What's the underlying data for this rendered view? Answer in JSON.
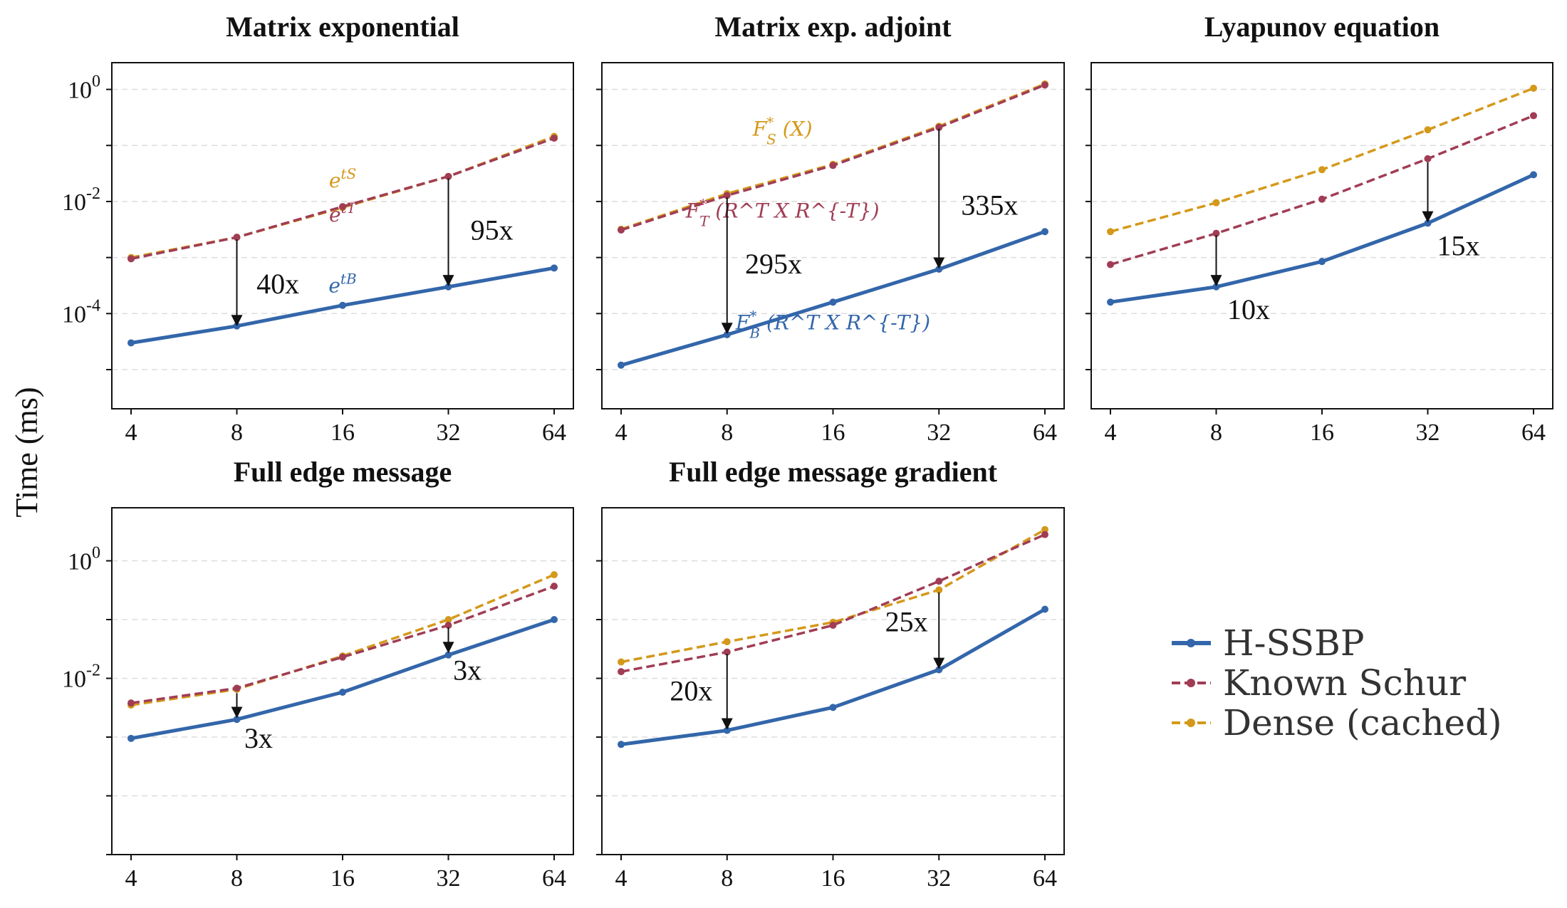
{
  "figure": {
    "ylabel": "Time (ms)",
    "legend": {
      "placement": "bottom-right",
      "entries": [
        {
          "name": "H-SSBP",
          "color": "#3366aa",
          "style": "solid"
        },
        {
          "name": "Known Schur",
          "color": "#a03d55",
          "style": "dashed"
        },
        {
          "name": "Dense (cached)",
          "color": "#d4991a",
          "style": "dashed"
        }
      ]
    }
  },
  "chart_data": [
    {
      "type": "line",
      "title": "Matrix exponential",
      "xscale": "log2",
      "yscale": "log10",
      "x": [
        4,
        8,
        16,
        32,
        64
      ],
      "xticks": [
        "4",
        "8",
        "16",
        "32",
        "64"
      ],
      "ylim": [
        2e-06,
        3
      ],
      "ytick_values": [
        0.0001,
        0.01,
        1
      ],
      "ytick_labels": [
        [
          "10",
          "-4"
        ],
        [
          "10",
          "-2"
        ],
        [
          "10",
          "0"
        ]
      ],
      "grid": "horizontal dashed",
      "series": [
        {
          "name": "H-SSBP",
          "values": [
            3e-05,
            6e-05,
            0.00014,
            0.0003,
            0.00065
          ]
        },
        {
          "name": "Known Schur",
          "values": [
            0.00095,
            0.0023,
            0.0081,
            0.028,
            0.135
          ]
        },
        {
          "name": "Dense (cached)",
          "values": [
            0.001,
            0.0023,
            0.0078,
            0.028,
            0.145
          ]
        }
      ],
      "series_labels": [
        {
          "text": "e",
          "sup": "tS",
          "color": "#d4991a",
          "x": 16,
          "y": 0.018
        },
        {
          "text": "e",
          "sup": "tT",
          "color": "#a03d55",
          "x": 16,
          "y": 0.0044
        },
        {
          "text": "e",
          "sup": "tB",
          "color": "#3366aa",
          "x": 16,
          "y": 0.00024
        }
      ],
      "annotations": [
        {
          "text": "40x",
          "x": 8,
          "from": 0.0021,
          "to": 6.2e-05,
          "label_x": 9.1,
          "label_y": 0.00023
        },
        {
          "text": "95x",
          "x": 32,
          "from": 0.026,
          "to": 0.00032,
          "label_x": 37,
          "label_y": 0.0021
        }
      ]
    },
    {
      "type": "line",
      "title": "Matrix exp. adjoint",
      "xscale": "log2",
      "yscale": "log10",
      "x": [
        4,
        8,
        16,
        32,
        64
      ],
      "xticks": [
        "4",
        "8",
        "16",
        "32",
        "64"
      ],
      "ylim": [
        2e-06,
        3
      ],
      "grid": "horizontal dashed",
      "series": [
        {
          "name": "H-SSBP",
          "values": [
            1.2e-05,
            4.2e-05,
            0.00016,
            0.00062,
            0.0029
          ]
        },
        {
          "name": "Known Schur",
          "values": [
            0.0031,
            0.0128,
            0.044,
            0.21,
            1.2
          ]
        },
        {
          "name": "Dense (cached)",
          "values": [
            0.0032,
            0.0138,
            0.046,
            0.22,
            1.25
          ]
        }
      ],
      "series_labels": [
        {
          "text": "F",
          "sub": "S",
          "sup": "*",
          "tail": "(X)",
          "color": "#d4991a",
          "x": 11.5,
          "y": 0.15
        },
        {
          "text": "F",
          "sub": "T",
          "sup": "*",
          "tail": "(R^T X R^{-T})",
          "color": "#a03d55",
          "x": 11.5,
          "y": 0.0052
        },
        {
          "text": "F",
          "sub": "B",
          "sup": "*",
          "tail": "(R^T X R^{-T})",
          "color": "#3366aa",
          "x": 16,
          "y": 5.2e-05
        }
      ],
      "annotations": [
        {
          "text": "295x",
          "x": 8,
          "from": 0.0118,
          "to": 4.5e-05,
          "label_x": 9,
          "label_y": 0.00052
        },
        {
          "text": "335x",
          "x": 32,
          "from": 0.2,
          "to": 0.00066,
          "label_x": 37,
          "label_y": 0.0058
        }
      ]
    },
    {
      "type": "line",
      "title": "Lyapunov equation",
      "xscale": "log2",
      "yscale": "log10",
      "x": [
        4,
        8,
        16,
        32,
        64
      ],
      "xticks": [
        "4",
        "8",
        "16",
        "32",
        "64"
      ],
      "ylim": [
        2e-06,
        3
      ],
      "grid": "horizontal dashed",
      "series": [
        {
          "name": "H-SSBP",
          "values": [
            0.00016,
            0.0003,
            0.00085,
            0.0041,
            0.03
          ]
        },
        {
          "name": "Known Schur",
          "values": [
            0.00075,
            0.0027,
            0.011,
            0.058,
            0.34
          ]
        },
        {
          "name": "Dense (cached)",
          "values": [
            0.0029,
            0.0095,
            0.037,
            0.19,
            1.05
          ]
        }
      ],
      "annotations": [
        {
          "text": "10x",
          "x": 8,
          "from": 0.0025,
          "to": 0.00032,
          "label_x": 8.6,
          "label_y": 8e-05
        },
        {
          "text": "15x",
          "x": 32,
          "from": 0.05,
          "to": 0.0044,
          "label_x": 34,
          "label_y": 0.0011
        }
      ]
    },
    {
      "type": "line",
      "title": "Full edge message",
      "xscale": "log2",
      "yscale": "log10",
      "x": [
        4,
        8,
        16,
        32,
        64
      ],
      "xticks": [
        "4",
        "8",
        "16",
        "32",
        "64"
      ],
      "ylim": [
        1e-05,
        8
      ],
      "ytick_values": [
        0.01,
        1
      ],
      "ytick_labels": [
        [
          "10",
          "-2"
        ],
        [
          "10",
          "0"
        ]
      ],
      "grid": "horizontal dashed",
      "series": [
        {
          "name": "H-SSBP",
          "values": [
            0.00095,
            0.002,
            0.0058,
            0.025,
            0.1
          ]
        },
        {
          "name": "Known Schur",
          "values": [
            0.0038,
            0.0068,
            0.023,
            0.08,
            0.37
          ]
        },
        {
          "name": "Dense (cached)",
          "values": [
            0.0035,
            0.0065,
            0.024,
            0.1,
            0.58
          ]
        }
      ],
      "annotations": [
        {
          "text": "3x",
          "x": 8,
          "from": 0.0056,
          "to": 0.0022,
          "label_x": 8.4,
          "label_y": 0.00066
        },
        {
          "text": "3x",
          "x": 32,
          "from": 0.074,
          "to": 0.028,
          "label_x": 33,
          "label_y": 0.0095
        }
      ]
    },
    {
      "type": "line",
      "title": "Full edge message gradient",
      "xscale": "log2",
      "yscale": "log10",
      "x": [
        4,
        8,
        16,
        32,
        64
      ],
      "xticks": [
        "4",
        "8",
        "16",
        "32",
        "64"
      ],
      "ylim": [
        1e-05,
        8
      ],
      "grid": "horizontal dashed",
      "series": [
        {
          "name": "H-SSBP",
          "values": [
            0.00075,
            0.0013,
            0.0032,
            0.014,
            0.15
          ]
        },
        {
          "name": "Known Schur",
          "values": [
            0.013,
            0.028,
            0.08,
            0.45,
            2.8
          ]
        },
        {
          "name": "Dense (cached)",
          "values": [
            0.019,
            0.042,
            0.09,
            0.32,
            3.4
          ]
        }
      ],
      "annotations": [
        {
          "text": "20x",
          "x": 8,
          "from": 0.026,
          "to": 0.0014,
          "label_x": 5.5,
          "label_y": 0.0042
        },
        {
          "text": "25x",
          "x": 32,
          "from": 0.29,
          "to": 0.015,
          "label_x": 22.5,
          "label_y": 0.063
        }
      ]
    }
  ],
  "colors": {
    "H-SSBP": "#3366aa",
    "Known Schur": "#a03d55",
    "Dense (cached)": "#d4991a",
    "grid": "#dddddd",
    "axis": "#111111"
  }
}
